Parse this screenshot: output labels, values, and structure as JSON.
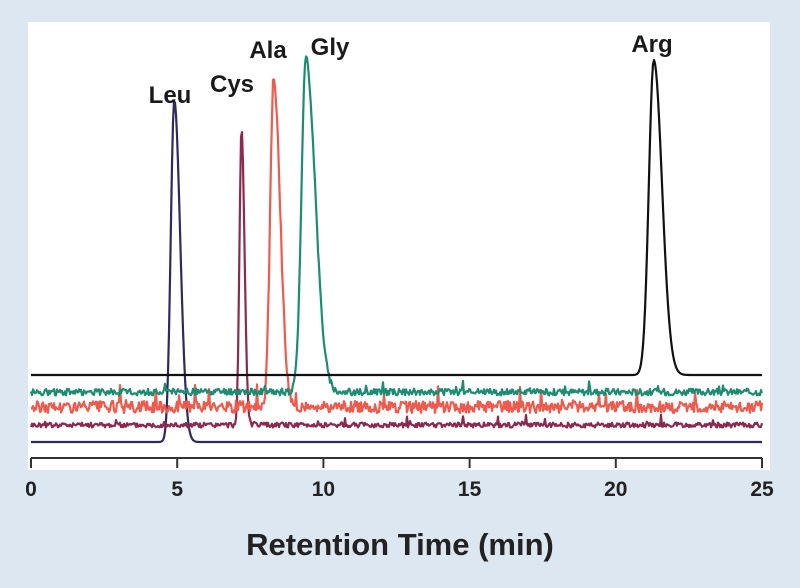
{
  "chart_data": {
    "type": "line",
    "title": "",
    "xlabel": "Retention Time (min)",
    "ylabel": "",
    "xlim": [
      0,
      25
    ],
    "x_ticks": [
      "0",
      "5",
      "10",
      "15",
      "20",
      "25"
    ],
    "grid": false,
    "legend": "none",
    "series": [
      {
        "name": "Leu",
        "peak_x": 4.9,
        "peak_height": 1.0,
        "width": 0.12,
        "tail": 0.2,
        "noise": 0.0,
        "color": "#2e2a5c"
      },
      {
        "name": "Cys",
        "peak_x": 7.2,
        "peak_height": 0.95,
        "width": 0.07,
        "tail": 0.1,
        "noise": 0.008,
        "color": "#8b2a4f"
      },
      {
        "name": "Ala",
        "peak_x": 8.3,
        "peak_height": 1.0,
        "width": 0.12,
        "tail": 0.22,
        "noise": 0.018,
        "color": "#ee5a4c"
      },
      {
        "name": "Gly",
        "peak_x": 9.4,
        "peak_height": 1.0,
        "width": 0.15,
        "tail": 0.32,
        "noise": 0.01,
        "color": "#1c8c72"
      },
      {
        "name": "Arg",
        "peak_x": 21.3,
        "peak_height": 1.0,
        "width": 0.17,
        "tail": 0.28,
        "noise": 0.0,
        "color": "#111111"
      }
    ]
  }
}
